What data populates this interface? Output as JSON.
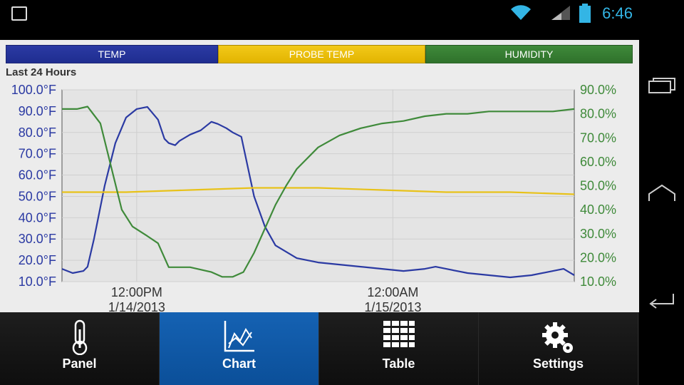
{
  "status": {
    "time": "6:46"
  },
  "legend": {
    "temp": "TEMP",
    "probe": "PROBE TEMP",
    "humidity": "HUMIDITY"
  },
  "range_label": "Last 24 Hours",
  "bottom_nav": [
    {
      "label": "Panel",
      "icon": "thermometer-icon"
    },
    {
      "label": "Chart",
      "icon": "chart-icon"
    },
    {
      "label": "Table",
      "icon": "table-icon"
    },
    {
      "label": "Settings",
      "icon": "gear-icon"
    }
  ],
  "colors": {
    "temp": "#2b3aa3",
    "probe": "#e8c21a",
    "humidity": "#3f8a3a",
    "active_tab": "#1562b3"
  },
  "chart_data": {
    "type": "line",
    "left_axis": {
      "ticks": [
        "100.0°F",
        "90.0°F",
        "80.0°F",
        "70.0°F",
        "60.0°F",
        "50.0°F",
        "40.0°F",
        "30.0°F",
        "20.0°F",
        "10.0°F"
      ],
      "range": [
        10,
        100
      ]
    },
    "right_axis": {
      "ticks": [
        "90.0%",
        "80.0%",
        "70.0%",
        "60.0%",
        "50.0%",
        "40.0%",
        "30.0%",
        "20.0%",
        "10.0%"
      ],
      "range": [
        10,
        90
      ]
    },
    "x_ticks": [
      {
        "time": "12:00PM",
        "date": "1/14/2013",
        "hour": 3.5
      },
      {
        "time": "12:00AM",
        "date": "1/15/2013",
        "hour": 15.5
      }
    ],
    "x_range_hours": [
      0,
      24
    ],
    "series": [
      {
        "name": "TEMP",
        "axis": "left",
        "x": [
          0,
          0.5,
          1,
          1.2,
          1.5,
          2,
          2.5,
          3,
          3.5,
          4,
          4.5,
          4.8,
          5,
          5.3,
          5.5,
          6,
          6.5,
          7,
          7.3,
          7.7,
          8,
          8.4,
          9,
          9.5,
          10,
          11,
          12,
          13,
          14,
          15,
          16,
          17,
          17.5,
          18,
          19,
          20,
          21,
          22,
          23,
          23.5,
          24
        ],
        "y": [
          16,
          14,
          15,
          17,
          30,
          55,
          75,
          87,
          91,
          92,
          86,
          77,
          75,
          74,
          76,
          79,
          81,
          85,
          84,
          82,
          80,
          78,
          50,
          36,
          27,
          21,
          19,
          18,
          17,
          16,
          15,
          16,
          17,
          16,
          14,
          13,
          12,
          13,
          15,
          16,
          13
        ]
      },
      {
        "name": "PROBE TEMP",
        "axis": "left",
        "x": [
          0,
          3,
          6,
          9,
          12,
          15,
          18,
          21,
          24
        ],
        "y": [
          52,
          52,
          53,
          54,
          54,
          53,
          52,
          52,
          51
        ]
      },
      {
        "name": "HUMIDITY",
        "axis": "right",
        "x": [
          0,
          0.7,
          1.2,
          1.8,
          2.3,
          2.8,
          3.3,
          4,
          4.5,
          5,
          6,
          7,
          7.5,
          8,
          8.5,
          9,
          9.5,
          10,
          10.5,
          11,
          12,
          13,
          14,
          15,
          16,
          17,
          18,
          19,
          20,
          21,
          22,
          23,
          24
        ],
        "y": [
          82,
          82,
          83,
          76,
          58,
          40,
          33,
          29,
          26,
          16,
          16,
          14,
          12,
          12,
          14,
          22,
          32,
          42,
          50,
          57,
          66,
          71,
          74,
          76,
          77,
          79,
          80,
          80,
          81,
          81,
          81,
          81,
          82
        ]
      }
    ]
  }
}
